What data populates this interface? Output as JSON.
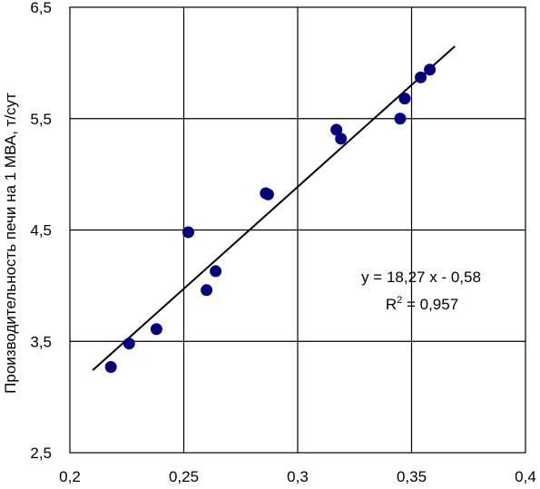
{
  "chart_data": {
    "type": "scatter",
    "title": "",
    "xlabel": "",
    "ylabel": "Производительность печи на 1 МВА, т/сут",
    "xlim": [
      0.2,
      0.4
    ],
    "ylim": [
      2.5,
      6.5
    ],
    "x_ticks": [
      0.2,
      0.25,
      0.3,
      0.35,
      0.4
    ],
    "x_tick_labels": [
      "0,2",
      "0,25",
      "0,3",
      "0,35",
      "0,4"
    ],
    "y_ticks": [
      2.5,
      3.5,
      4.5,
      5.5,
      6.5
    ],
    "y_tick_labels": [
      "2,5",
      "3,5",
      "4,5",
      "5,5",
      "6,5"
    ],
    "grid": true,
    "legend": "none",
    "marker_color": "#000080",
    "line_color": "#000000",
    "series": [
      {
        "points": [
          {
            "x": 0.218,
            "y": 3.27
          },
          {
            "x": 0.226,
            "y": 3.48
          },
          {
            "x": 0.238,
            "y": 3.61
          },
          {
            "x": 0.252,
            "y": 4.48
          },
          {
            "x": 0.26,
            "y": 3.96
          },
          {
            "x": 0.264,
            "y": 4.13
          },
          {
            "x": 0.286,
            "y": 4.83
          },
          {
            "x": 0.287,
            "y": 4.82
          },
          {
            "x": 0.317,
            "y": 5.4
          },
          {
            "x": 0.319,
            "y": 5.32
          },
          {
            "x": 0.345,
            "y": 5.5
          },
          {
            "x": 0.347,
            "y": 5.68
          },
          {
            "x": 0.354,
            "y": 5.87
          },
          {
            "x": 0.358,
            "y": 5.94
          }
        ]
      }
    ],
    "trendline": {
      "type": "linear",
      "x_range": [
        0.21,
        0.369
      ],
      "y_values": [
        3.24,
        6.15
      ],
      "equation": "y = 18,27 x - 0,58",
      "r2_label": "R",
      "r2_sup": "2",
      "r2_value": " = 0,957"
    }
  }
}
